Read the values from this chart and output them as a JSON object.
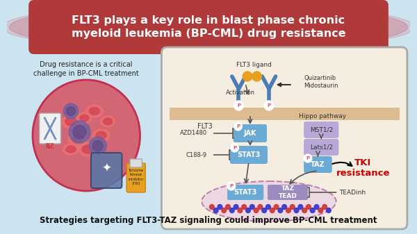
{
  "bg_color": "#cce4f0",
  "title_text": "FLT3 plays a key role in blast phase chronic\nmyeloid leukemia (BP-CML) drug resistance",
  "title_bg": "#b03a3a",
  "title_color": "#ffffff",
  "subtitle_text": "Strategies targeting FLT3-TAZ signaling could improve BP-CML treatment",
  "left_caption": "Drug resistance is a critical\nchallenge in BP-CML treatment",
  "right_box_bg": "#f5ede0",
  "right_box_border": "#aaaaaa",
  "pathway_labels": {
    "flt3_ligand": "FLT3 ligand",
    "activation": "Activation",
    "quizartinib": "Quizartinib\nMidostaurin",
    "hippo": "Hippo pathway",
    "flt3": "FLT3",
    "azd1480": "AZD1480",
    "jak": "JAK",
    "c1889": "C188-9",
    "stat3": "STAT3",
    "mst12": "MST1/2",
    "lats12": "Lats1/2",
    "taz": "TAZ",
    "tead": "TEAD",
    "teadinh": "TEADinh",
    "tki": "TKI\nresistance",
    "stat3_bottom": "STAT3",
    "taz_tead": "TAZ\nTEAD"
  },
  "p_label": "P",
  "p_color": "#e05070",
  "jak_color": "#6aaad4",
  "stat3_color": "#6aaad4",
  "taz_color": "#6aaad4",
  "tead_color": "#9b8bbf",
  "mst_color": "#b8a8d8",
  "arrow_color": "#333333",
  "inhibit_color": "#333333",
  "tki_color": "#cc0000",
  "membrane_color": "#d4a870",
  "nucleus_color": "#e8d0e0",
  "dna_color1": "#cc3333",
  "dna_color2": "#3333cc",
  "receptor_color": "#4a7cb5",
  "ligand_color": "#e8a020",
  "blast_inner_color": "#504080"
}
